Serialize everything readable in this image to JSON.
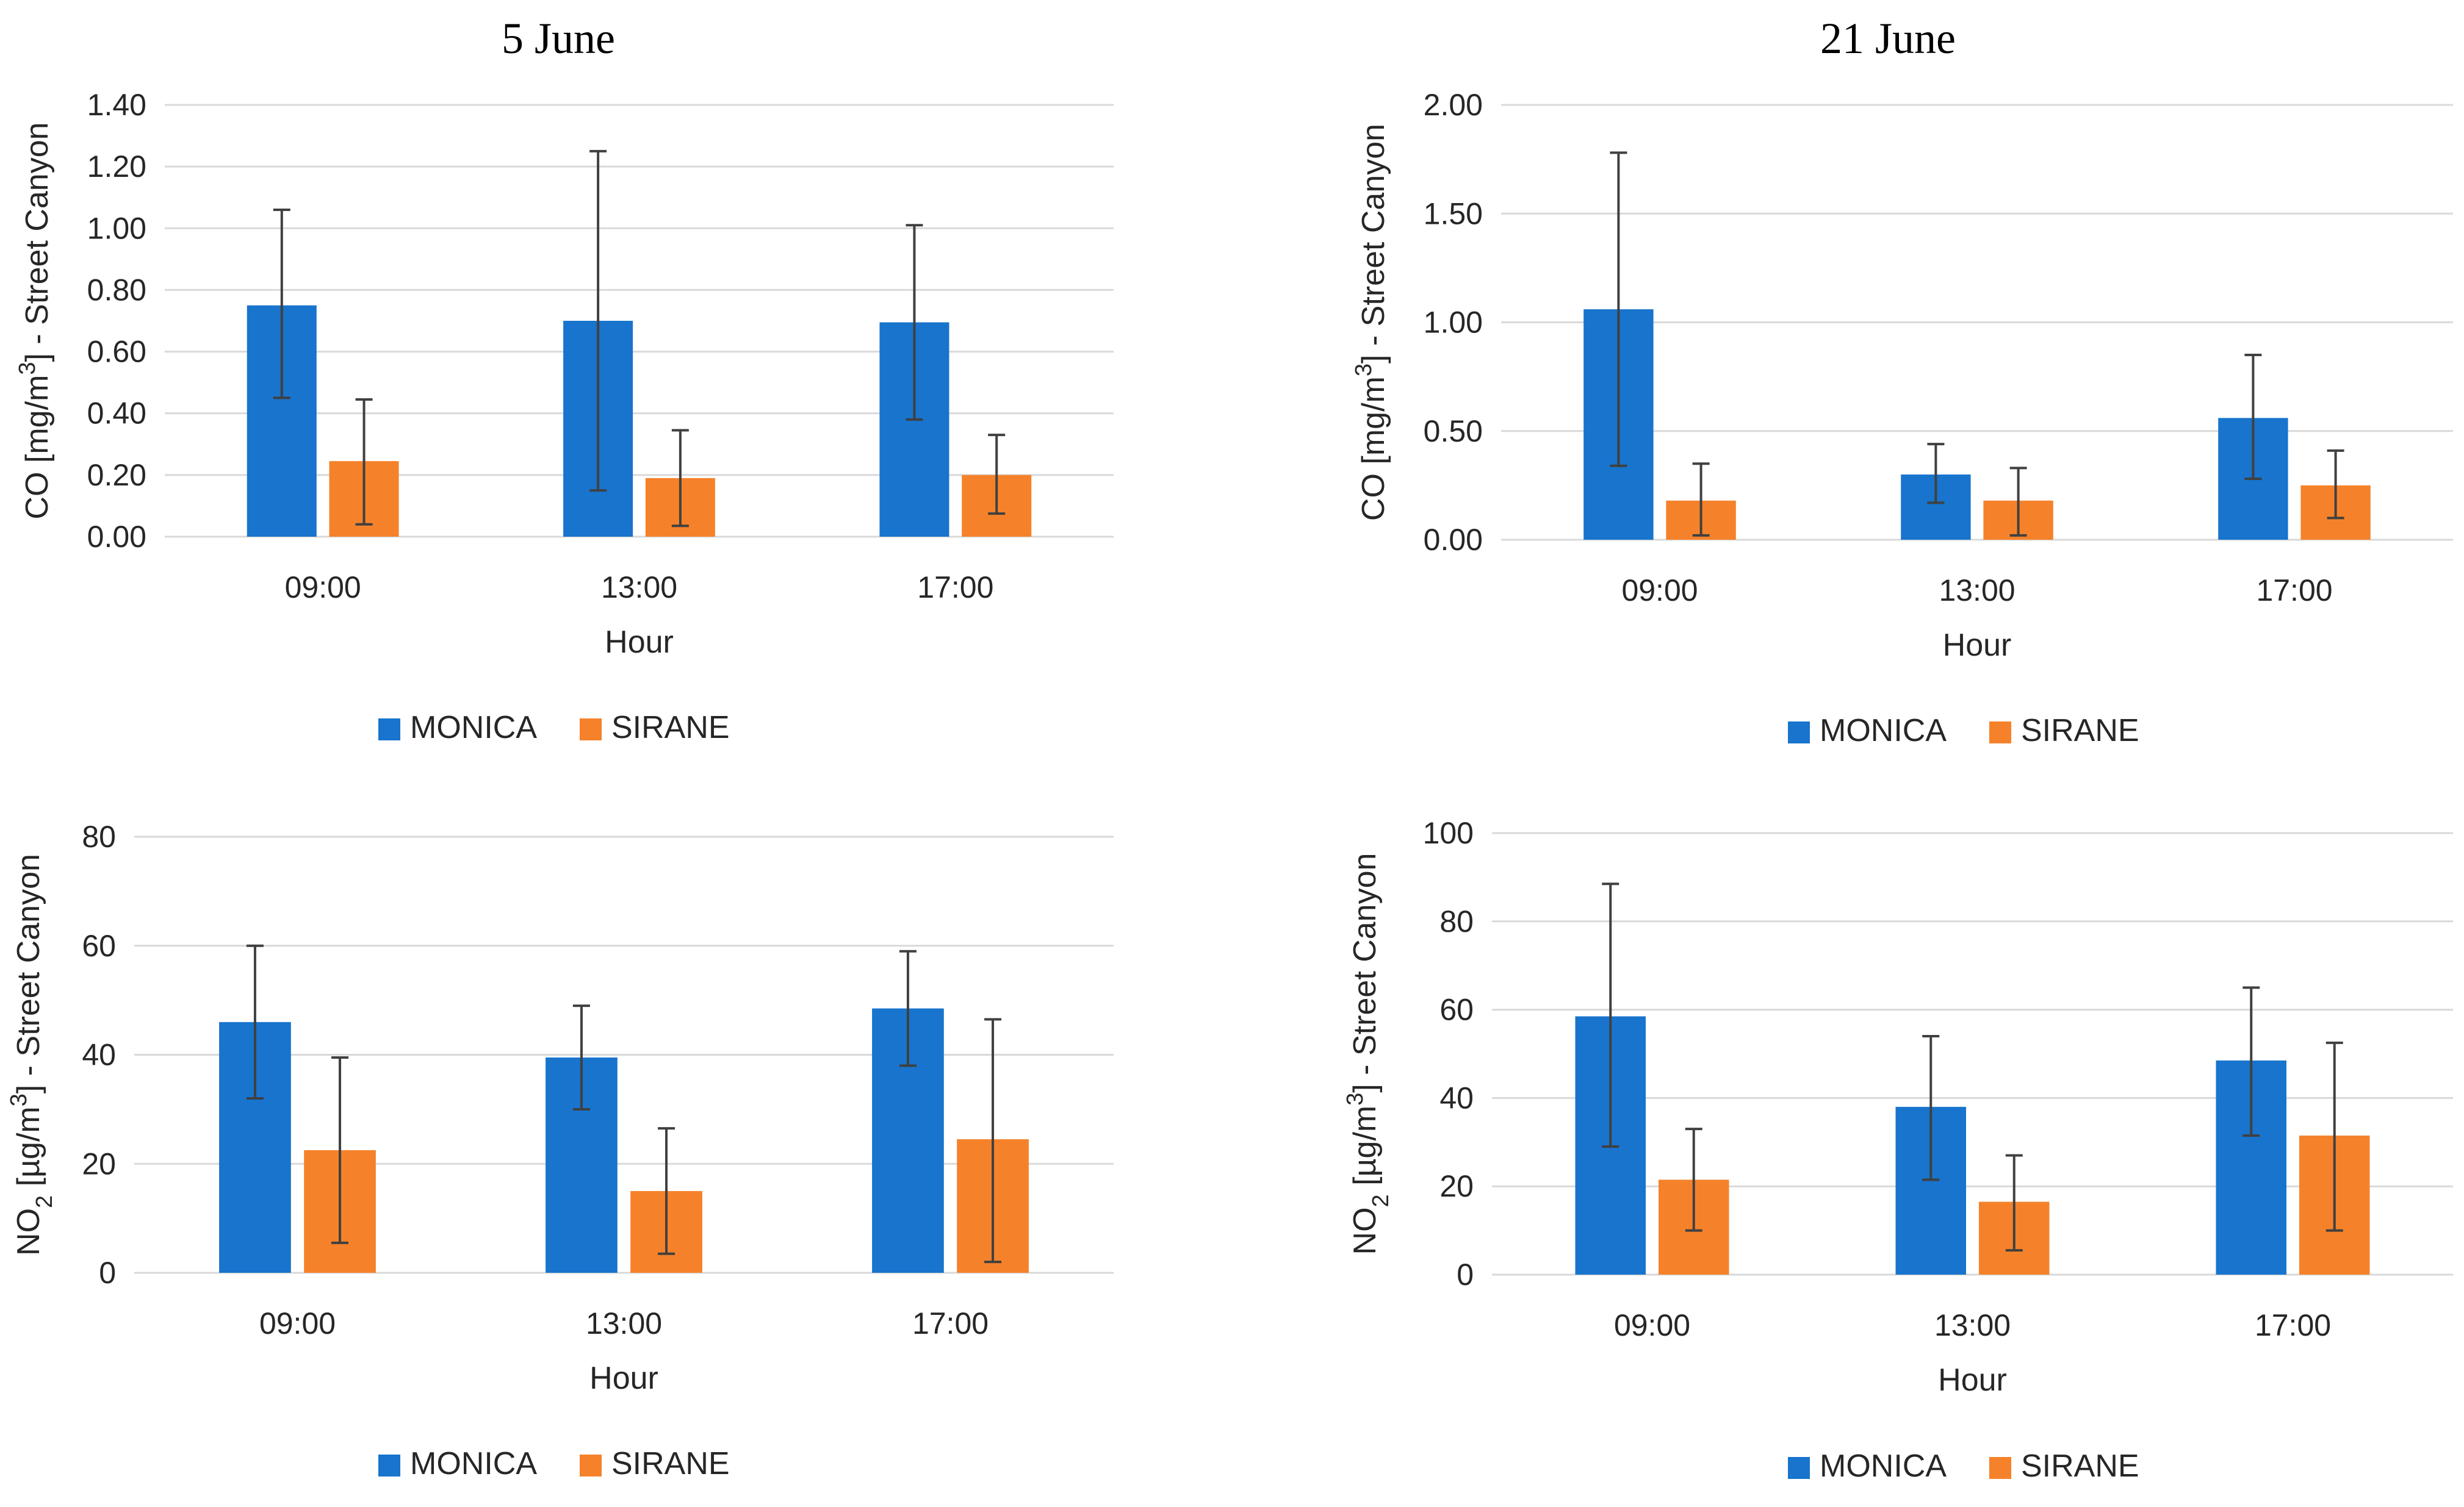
{
  "titles": {
    "left": "5 June",
    "right": "21 June"
  },
  "colors": {
    "MONICA": "#1874CD",
    "SIRANE": "#F5822A",
    "grid": "#D9D9D9",
    "errorbar": "#404040"
  },
  "chart_data": [
    {
      "type": "bar",
      "date": "5 June",
      "pollutant": "CO",
      "categories": [
        "09:00",
        "13:00",
        "17:00"
      ],
      "xlabel": "Hour",
      "ylabel": "CO [mg/m3] - Street Canyon",
      "ylim": [
        0,
        1.4
      ],
      "yticks": [
        0,
        0.2,
        0.4,
        0.6,
        0.8,
        1.0,
        1.2,
        1.4
      ],
      "decimals": 2,
      "grid": true,
      "legend": "bottom",
      "series": [
        {
          "name": "MONICA",
          "values": [
            0.75,
            0.7,
            0.695
          ],
          "err_low": [
            0.45,
            0.15,
            0.38
          ],
          "err_high": [
            1.06,
            1.25,
            1.01
          ]
        },
        {
          "name": "SIRANE",
          "values": [
            0.245,
            0.19,
            0.2
          ],
          "err_low": [
            0.04,
            0.035,
            0.075
          ],
          "err_high": [
            0.445,
            0.345,
            0.33
          ]
        }
      ]
    },
    {
      "type": "bar",
      "date": "21 June",
      "pollutant": "CO",
      "categories": [
        "09:00",
        "13:00",
        "17:00"
      ],
      "xlabel": "Hour",
      "ylabel": "CO [mg/m3] - Street Canyon",
      "ylim": [
        0,
        2.0
      ],
      "yticks": [
        0,
        0.5,
        1.0,
        1.5,
        2.0
      ],
      "decimals": 2,
      "grid": true,
      "legend": "bottom",
      "series": [
        {
          "name": "MONICA",
          "values": [
            1.06,
            0.3,
            0.56
          ],
          "err_low": [
            0.34,
            0.17,
            0.28
          ],
          "err_high": [
            1.78,
            0.44,
            0.85
          ]
        },
        {
          "name": "SIRANE",
          "values": [
            0.18,
            0.18,
            0.25
          ],
          "err_low": [
            0.02,
            0.02,
            0.1
          ],
          "err_high": [
            0.35,
            0.33,
            0.41
          ]
        }
      ]
    },
    {
      "type": "bar",
      "date": "5 June",
      "pollutant": "NO2",
      "categories": [
        "09:00",
        "13:00",
        "17:00"
      ],
      "xlabel": "Hour",
      "ylabel": "NO2 [µg/m3] - Street Canyon",
      "ylim": [
        0,
        80
      ],
      "yticks": [
        0,
        20,
        40,
        60,
        80
      ],
      "decimals": 0,
      "grid": true,
      "legend": "bottom",
      "series": [
        {
          "name": "MONICA",
          "values": [
            46,
            39.5,
            48.5
          ],
          "err_low": [
            32,
            30,
            38
          ],
          "err_high": [
            60,
            49,
            59
          ]
        },
        {
          "name": "SIRANE",
          "values": [
            22.5,
            15,
            24.5
          ],
          "err_low": [
            5.5,
            3.5,
            2
          ],
          "err_high": [
            39.5,
            26.5,
            46.5
          ]
        }
      ]
    },
    {
      "type": "bar",
      "date": "21 June",
      "pollutant": "NO2",
      "categories": [
        "09:00",
        "13:00",
        "17:00"
      ],
      "xlabel": "Hour",
      "ylabel": "NO2 [µg/m3] - Street Canyon",
      "ylim": [
        0,
        100
      ],
      "yticks": [
        0,
        20,
        40,
        60,
        80,
        100
      ],
      "decimals": 0,
      "grid": true,
      "legend": "bottom",
      "series": [
        {
          "name": "MONICA",
          "values": [
            58.5,
            38,
            48.5
          ],
          "err_low": [
            29,
            21.5,
            31.5
          ],
          "err_high": [
            88.5,
            54,
            65
          ]
        },
        {
          "name": "SIRANE",
          "values": [
            21.5,
            16.5,
            31.5
          ],
          "err_low": [
            10,
            5.5,
            10
          ],
          "err_high": [
            33,
            27,
            52.5
          ]
        }
      ]
    }
  ]
}
